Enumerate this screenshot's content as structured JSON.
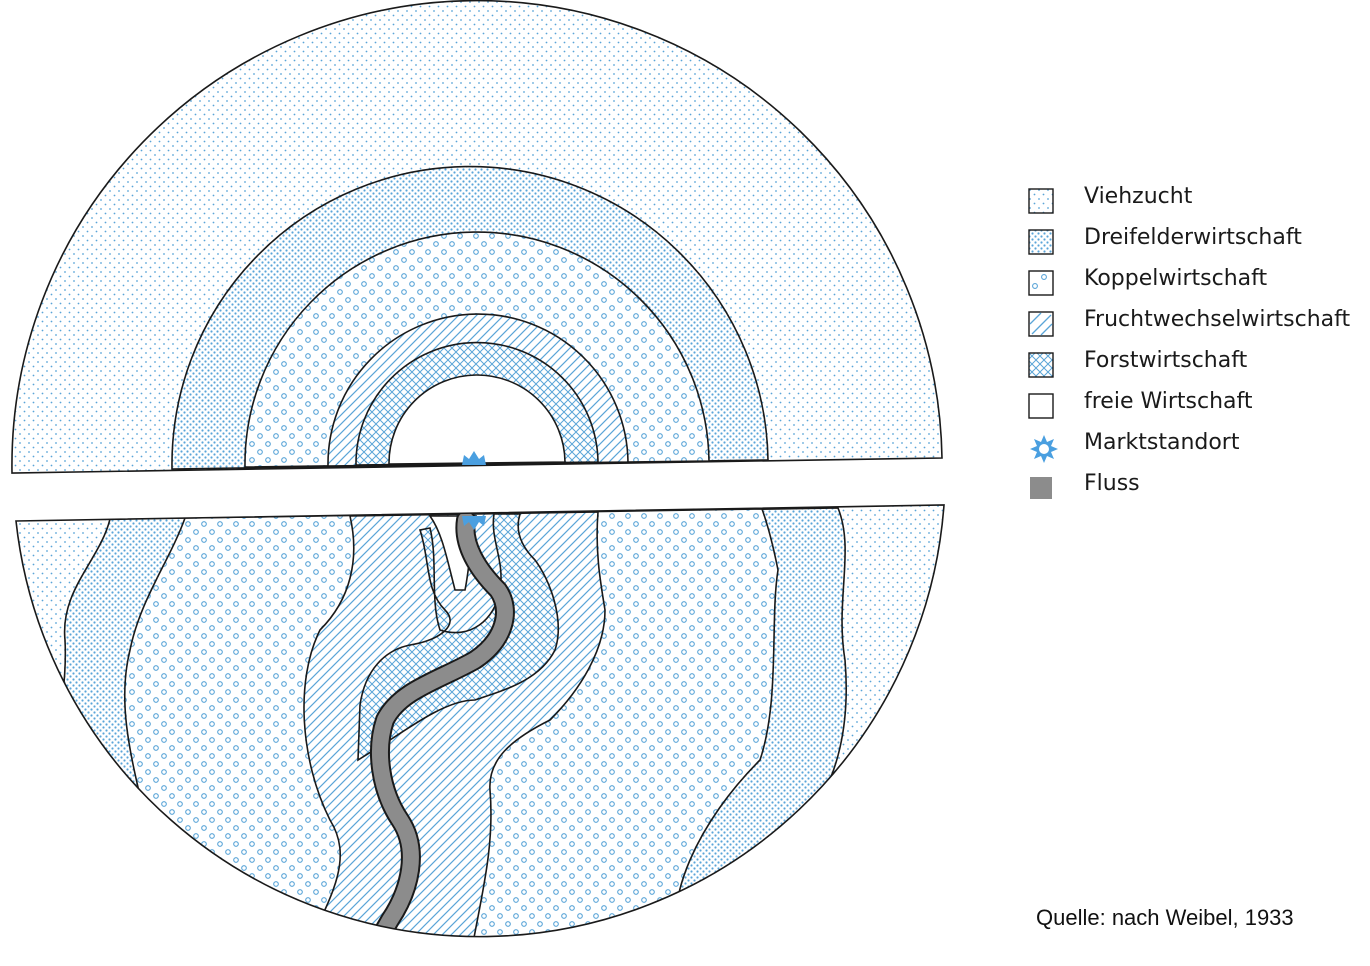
{
  "legend": {
    "items": [
      {
        "id": "viehzucht",
        "label": "Viehzucht",
        "icon": "dots-fine-swatch"
      },
      {
        "id": "dreifelder",
        "label": "Dreifelderwirtschaft",
        "icon": "dots-dense-swatch"
      },
      {
        "id": "koppel",
        "label": "Koppelwirtschaft",
        "icon": "circles-swatch"
      },
      {
        "id": "fruchtwechsel",
        "label": "Fruchtwechselwirtschaft",
        "icon": "diagonal-hatch-swatch"
      },
      {
        "id": "forst",
        "label": "Forstwirtschaft",
        "icon": "cross-hatch-swatch"
      },
      {
        "id": "frei",
        "label": "freie Wirtschaft",
        "icon": "empty-swatch"
      },
      {
        "id": "markt",
        "label": "Marktstandort",
        "icon": "star-icon"
      },
      {
        "id": "fluss",
        "label": "Fluss",
        "icon": "grey-swatch"
      }
    ]
  },
  "source": "Quelle: nach Weibel, 1933",
  "colors": {
    "pattern": "#5aa5d8",
    "outline": "#1a1a1a",
    "river": "#8c8c8c",
    "marker": "#4a9fe0"
  }
}
